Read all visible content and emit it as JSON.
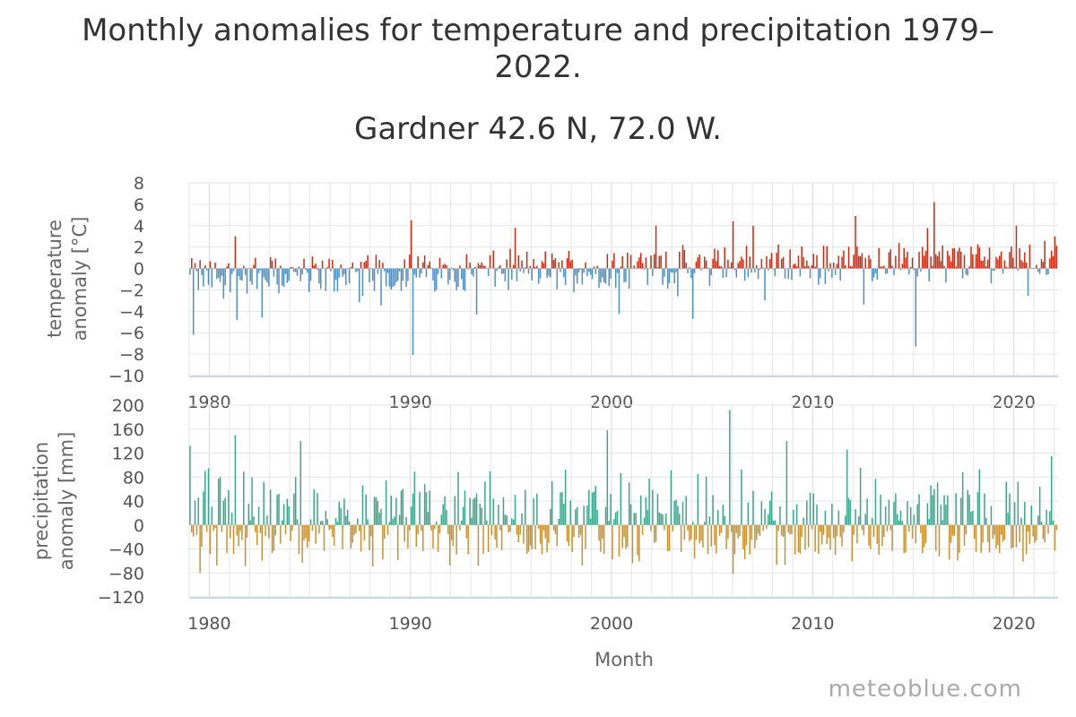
{
  "page": {
    "title_line1": "Monthly anomalies for temperature and precipitation 1979–",
    "title_line2": "2022.",
    "subtitle": "Gardner 42.6 N, 72.0 W.",
    "watermark": "meteoblue.com"
  },
  "colors": {
    "temp_positive": "#cc2a12",
    "temp_negative": "#4f8fbf",
    "precip_positive": "#3aa68a",
    "precip_negative": "#c9912d",
    "grid": "#e6e6e6",
    "axis": "#ccd6eb"
  },
  "chart_data": [
    {
      "type": "bar",
      "id": "temperature",
      "title": "",
      "ylabel_line1": "temperature",
      "ylabel_line2": "anomaly [°C]",
      "xlabel": "",
      "xlim": [
        1979.0,
        2022.2
      ],
      "ylim": [
        -10,
        8
      ],
      "yticks": [
        8,
        6,
        4,
        2,
        0,
        -2,
        -4,
        -6,
        -8,
        -10
      ],
      "xticks": [
        1980,
        1990,
        2000,
        2010,
        2020
      ],
      "highlighted_extremes": [
        {
          "x": 1979.2,
          "y": -6.2
        },
        {
          "x": 1981.3,
          "y": 3.0
        },
        {
          "x": 1981.4,
          "y": -4.8
        },
        {
          "x": 1982.6,
          "y": -4.6
        },
        {
          "x": 1990.0,
          "y": 4.5
        },
        {
          "x": 1990.0,
          "y": -8.1
        },
        {
          "x": 1993.3,
          "y": -4.3
        },
        {
          "x": 1995.2,
          "y": 3.8
        },
        {
          "x": 2002.2,
          "y": 4.0
        },
        {
          "x": 2004.0,
          "y": -4.7
        },
        {
          "x": 2006.0,
          "y": 4.4
        },
        {
          "x": 2007.0,
          "y": 4.0
        },
        {
          "x": 2012.1,
          "y": 4.9
        },
        {
          "x": 2015.1,
          "y": -7.3
        },
        {
          "x": 2016.0,
          "y": 6.2
        },
        {
          "x": 2020.1,
          "y": 4.0
        },
        {
          "x": 2022.0,
          "y": 3.0
        }
      ]
    },
    {
      "type": "bar",
      "id": "precipitation",
      "title": "",
      "ylabel_line1": "precipitation",
      "ylabel_line2": "anomaly [mm]",
      "xlabel": "Month",
      "xlim": [
        1979.0,
        2022.2
      ],
      "ylim": [
        -120,
        200
      ],
      "yticks": [
        200,
        160,
        120,
        80,
        40,
        0,
        -40,
        -80,
        -120
      ],
      "xticks": [
        1980,
        1990,
        2000,
        2010,
        2020
      ],
      "highlighted_extremes": [
        {
          "x": 1979.0,
          "y": 132
        },
        {
          "x": 1979.5,
          "y": -80
        },
        {
          "x": 1981.3,
          "y": 150
        },
        {
          "x": 1984.5,
          "y": 140
        },
        {
          "x": 1999.8,
          "y": 158
        },
        {
          "x": 2005.9,
          "y": 192
        },
        {
          "x": 2006.0,
          "y": -82
        },
        {
          "x": 2008.7,
          "y": 140
        },
        {
          "x": 2011.7,
          "y": 126
        },
        {
          "x": 2021.9,
          "y": 115
        }
      ]
    }
  ]
}
